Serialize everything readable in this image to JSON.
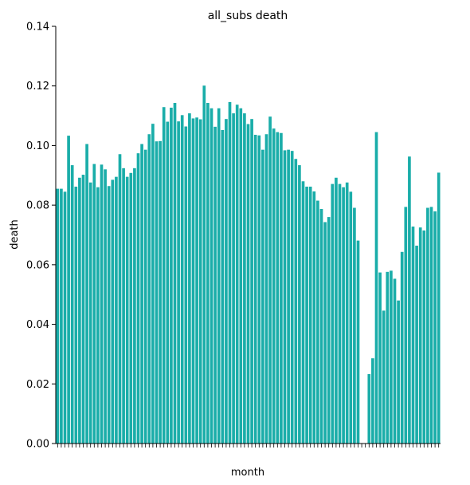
{
  "chart_data": {
    "type": "bar",
    "title": "all_subs death",
    "xlabel": "month",
    "ylabel": "death",
    "ylim": [
      0,
      0.14
    ],
    "yticks": [
      "0.00",
      "0.02",
      "0.04",
      "0.06",
      "0.08",
      "0.10",
      "0.12",
      "0.14"
    ],
    "grid": false,
    "legend": "none",
    "bar_color": "#1aada9",
    "x_tick_label_note": "x tick labels overlap and are illegible; only fragments like '2020' and '2006' are visible",
    "series": [
      {
        "values": [
          0.0855,
          0.0855,
          0.0845,
          0.1033,
          0.0934,
          0.0862,
          0.0892,
          0.0902,
          0.1005,
          0.0876,
          0.0938,
          0.086,
          0.0936,
          0.092,
          0.0864,
          0.0885,
          0.0895,
          0.0971,
          0.0924,
          0.0895,
          0.0908,
          0.0924,
          0.0974,
          0.1005,
          0.0986,
          0.1038,
          0.1073,
          0.1014,
          0.1015,
          0.1129,
          0.108,
          0.1127,
          0.1143,
          0.1081,
          0.1102,
          0.1064,
          0.1108,
          0.1091,
          0.1094,
          0.1088,
          0.1201,
          0.1143,
          0.1125,
          0.1063,
          0.1125,
          0.1052,
          0.1089,
          0.1146,
          0.1108,
          0.1137,
          0.1125,
          0.1108,
          0.1072,
          0.1089,
          0.1036,
          0.1034,
          0.0986,
          0.1038,
          0.1097,
          0.1057,
          0.1045,
          0.1042,
          0.0984,
          0.0986,
          0.0982,
          0.0955,
          0.0934,
          0.088,
          0.0862,
          0.0862,
          0.0846,
          0.0815,
          0.0787,
          0.0743,
          0.076,
          0.0871,
          0.0892,
          0.0871,
          0.086,
          0.0876,
          0.0845,
          0.0791,
          0.0681,
          0,
          0,
          0.0233,
          0.0286,
          0.1045,
          0.0574,
          0.0446,
          0.0576,
          0.058,
          0.0553,
          0.048,
          0.0643,
          0.0794,
          0.0963,
          0.0728,
          0.0664,
          0.0725,
          0.0715,
          0.0791,
          0.0794,
          0.0779,
          0.0909
        ]
      }
    ]
  }
}
